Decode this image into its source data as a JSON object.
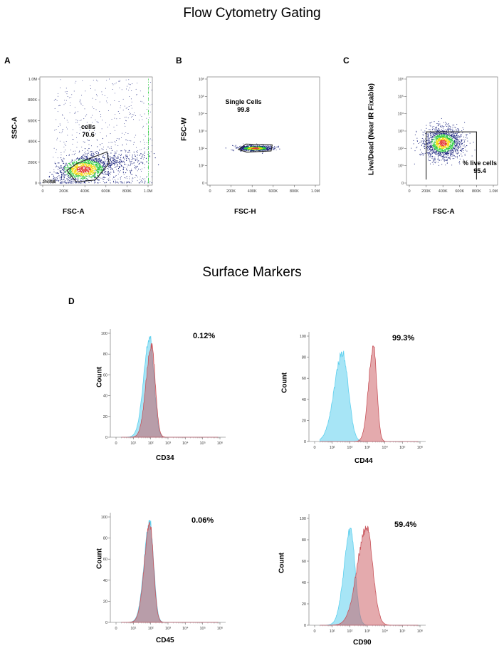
{
  "titles": {
    "gating": "Flow Cytometry Gating",
    "surface": "Surface Markers"
  },
  "colors": {
    "control": "#5fd0ee",
    "marker": "#c9555c",
    "overlap": "#7a8fa5",
    "gate": "#222222",
    "density_low": "#1a237e",
    "density_mid": "#2ecc40",
    "density_high": "#e53935"
  },
  "chart_data": [
    {
      "type": "scatter",
      "panel": "A",
      "xlabel": "FSC-A",
      "ylabel": "SSC-A",
      "xlim": [
        0,
        1050000
      ],
      "ylim": [
        0,
        1050000
      ],
      "xticks": [
        "0",
        "200K",
        "400K",
        "600K",
        "800K",
        "1.0M"
      ],
      "yticks": [
        "0",
        "200K",
        "400K",
        "600K",
        "800K",
        "1.0M"
      ],
      "gate": {
        "name": "cells",
        "value": "70.6"
      },
      "population_center": [
        390000,
        130000
      ]
    },
    {
      "type": "scatter",
      "panel": "B",
      "xlabel": "FSC-H",
      "ylabel": "FSC-W",
      "xlim": [
        0,
        1050000
      ],
      "yscale": "log",
      "xticks": [
        "0",
        "200K",
        "400K",
        "600K",
        "800K",
        "1.0M"
      ],
      "yticks": [
        "0",
        "10¹",
        "10²",
        "10³",
        "10⁴",
        "10⁵",
        "10⁶"
      ],
      "gate": {
        "name": "Single Cells",
        "value": "99.8"
      },
      "population_center": [
        430000,
        100
      ]
    },
    {
      "type": "scatter",
      "panel": "C",
      "xlabel": "FSC-A",
      "ylabel": "Live/Dead (Near IR Fixable)",
      "xlim": [
        0,
        1050000
      ],
      "yscale": "log",
      "xticks": [
        "0",
        "200K",
        "400K",
        "600K",
        "800K",
        "1.0M"
      ],
      "yticks": [
        "0",
        "10¹",
        "10²",
        "10³",
        "10⁴",
        "10⁵",
        "10⁶"
      ],
      "gate": {
        "name": "% live cells",
        "value": "95.4"
      },
      "population_center": [
        400000,
        200
      ]
    },
    {
      "type": "area",
      "panel": "D",
      "marker": "CD34",
      "ylabel": "Count",
      "xscale": "log",
      "xticks": [
        "0",
        "10¹",
        "10²",
        "10³",
        "10⁴",
        "10⁵",
        "10⁶"
      ],
      "yticks": [
        "0",
        "20",
        "40",
        "60",
        "80",
        "100"
      ],
      "ylim": [
        0,
        100
      ],
      "percent": "0.12%",
      "series": [
        {
          "role": "control",
          "peak_log10": 1.95,
          "peak": 97,
          "width": 0.28
        },
        {
          "role": "marker",
          "peak_log10": 2.05,
          "peak": 91,
          "width": 0.25
        }
      ]
    },
    {
      "type": "area",
      "panel": "D",
      "marker": "CD44",
      "ylabel": "Count",
      "xscale": "log",
      "xticks": [
        "0",
        "10¹",
        "10²",
        "10³",
        "10⁴",
        "10⁵",
        "10⁶"
      ],
      "yticks": [
        "0",
        "20",
        "40",
        "60",
        "80",
        "100"
      ],
      "ylim": [
        0,
        100
      ],
      "percent": "99.3%",
      "series": [
        {
          "role": "control",
          "peak_log10": 1.6,
          "peak": 86,
          "width": 0.38
        },
        {
          "role": "marker",
          "peak_log10": 3.35,
          "peak": 93,
          "width": 0.22
        }
      ]
    },
    {
      "type": "area",
      "panel": "D",
      "marker": "CD45",
      "ylabel": "Count",
      "xscale": "log",
      "xticks": [
        "0",
        "10¹",
        "10²",
        "10³",
        "10⁴",
        "10⁵",
        "10⁶"
      ],
      "yticks": [
        "0",
        "20",
        "40",
        "60",
        "80",
        "100"
      ],
      "ylim": [
        0,
        100
      ],
      "percent": "0.06%",
      "series": [
        {
          "role": "control",
          "peak_log10": 1.95,
          "peak": 97,
          "width": 0.26
        },
        {
          "role": "marker",
          "peak_log10": 1.95,
          "peak": 96,
          "width": 0.25
        }
      ]
    },
    {
      "type": "area",
      "panel": "D",
      "marker": "CD90",
      "ylabel": "Count",
      "xscale": "log",
      "xticks": [
        "0",
        "10¹",
        "10²",
        "10³",
        "10⁴",
        "10⁵",
        "10⁶"
      ],
      "yticks": [
        "0",
        "20",
        "40",
        "60",
        "80",
        "100"
      ],
      "ylim": [
        0,
        100
      ],
      "percent": "59.4%",
      "series": [
        {
          "role": "control",
          "peak_log10": 2.05,
          "peak": 91,
          "width": 0.3
        },
        {
          "role": "marker",
          "peak_log10": 2.95,
          "peak": 93,
          "width": 0.42
        }
      ]
    }
  ]
}
